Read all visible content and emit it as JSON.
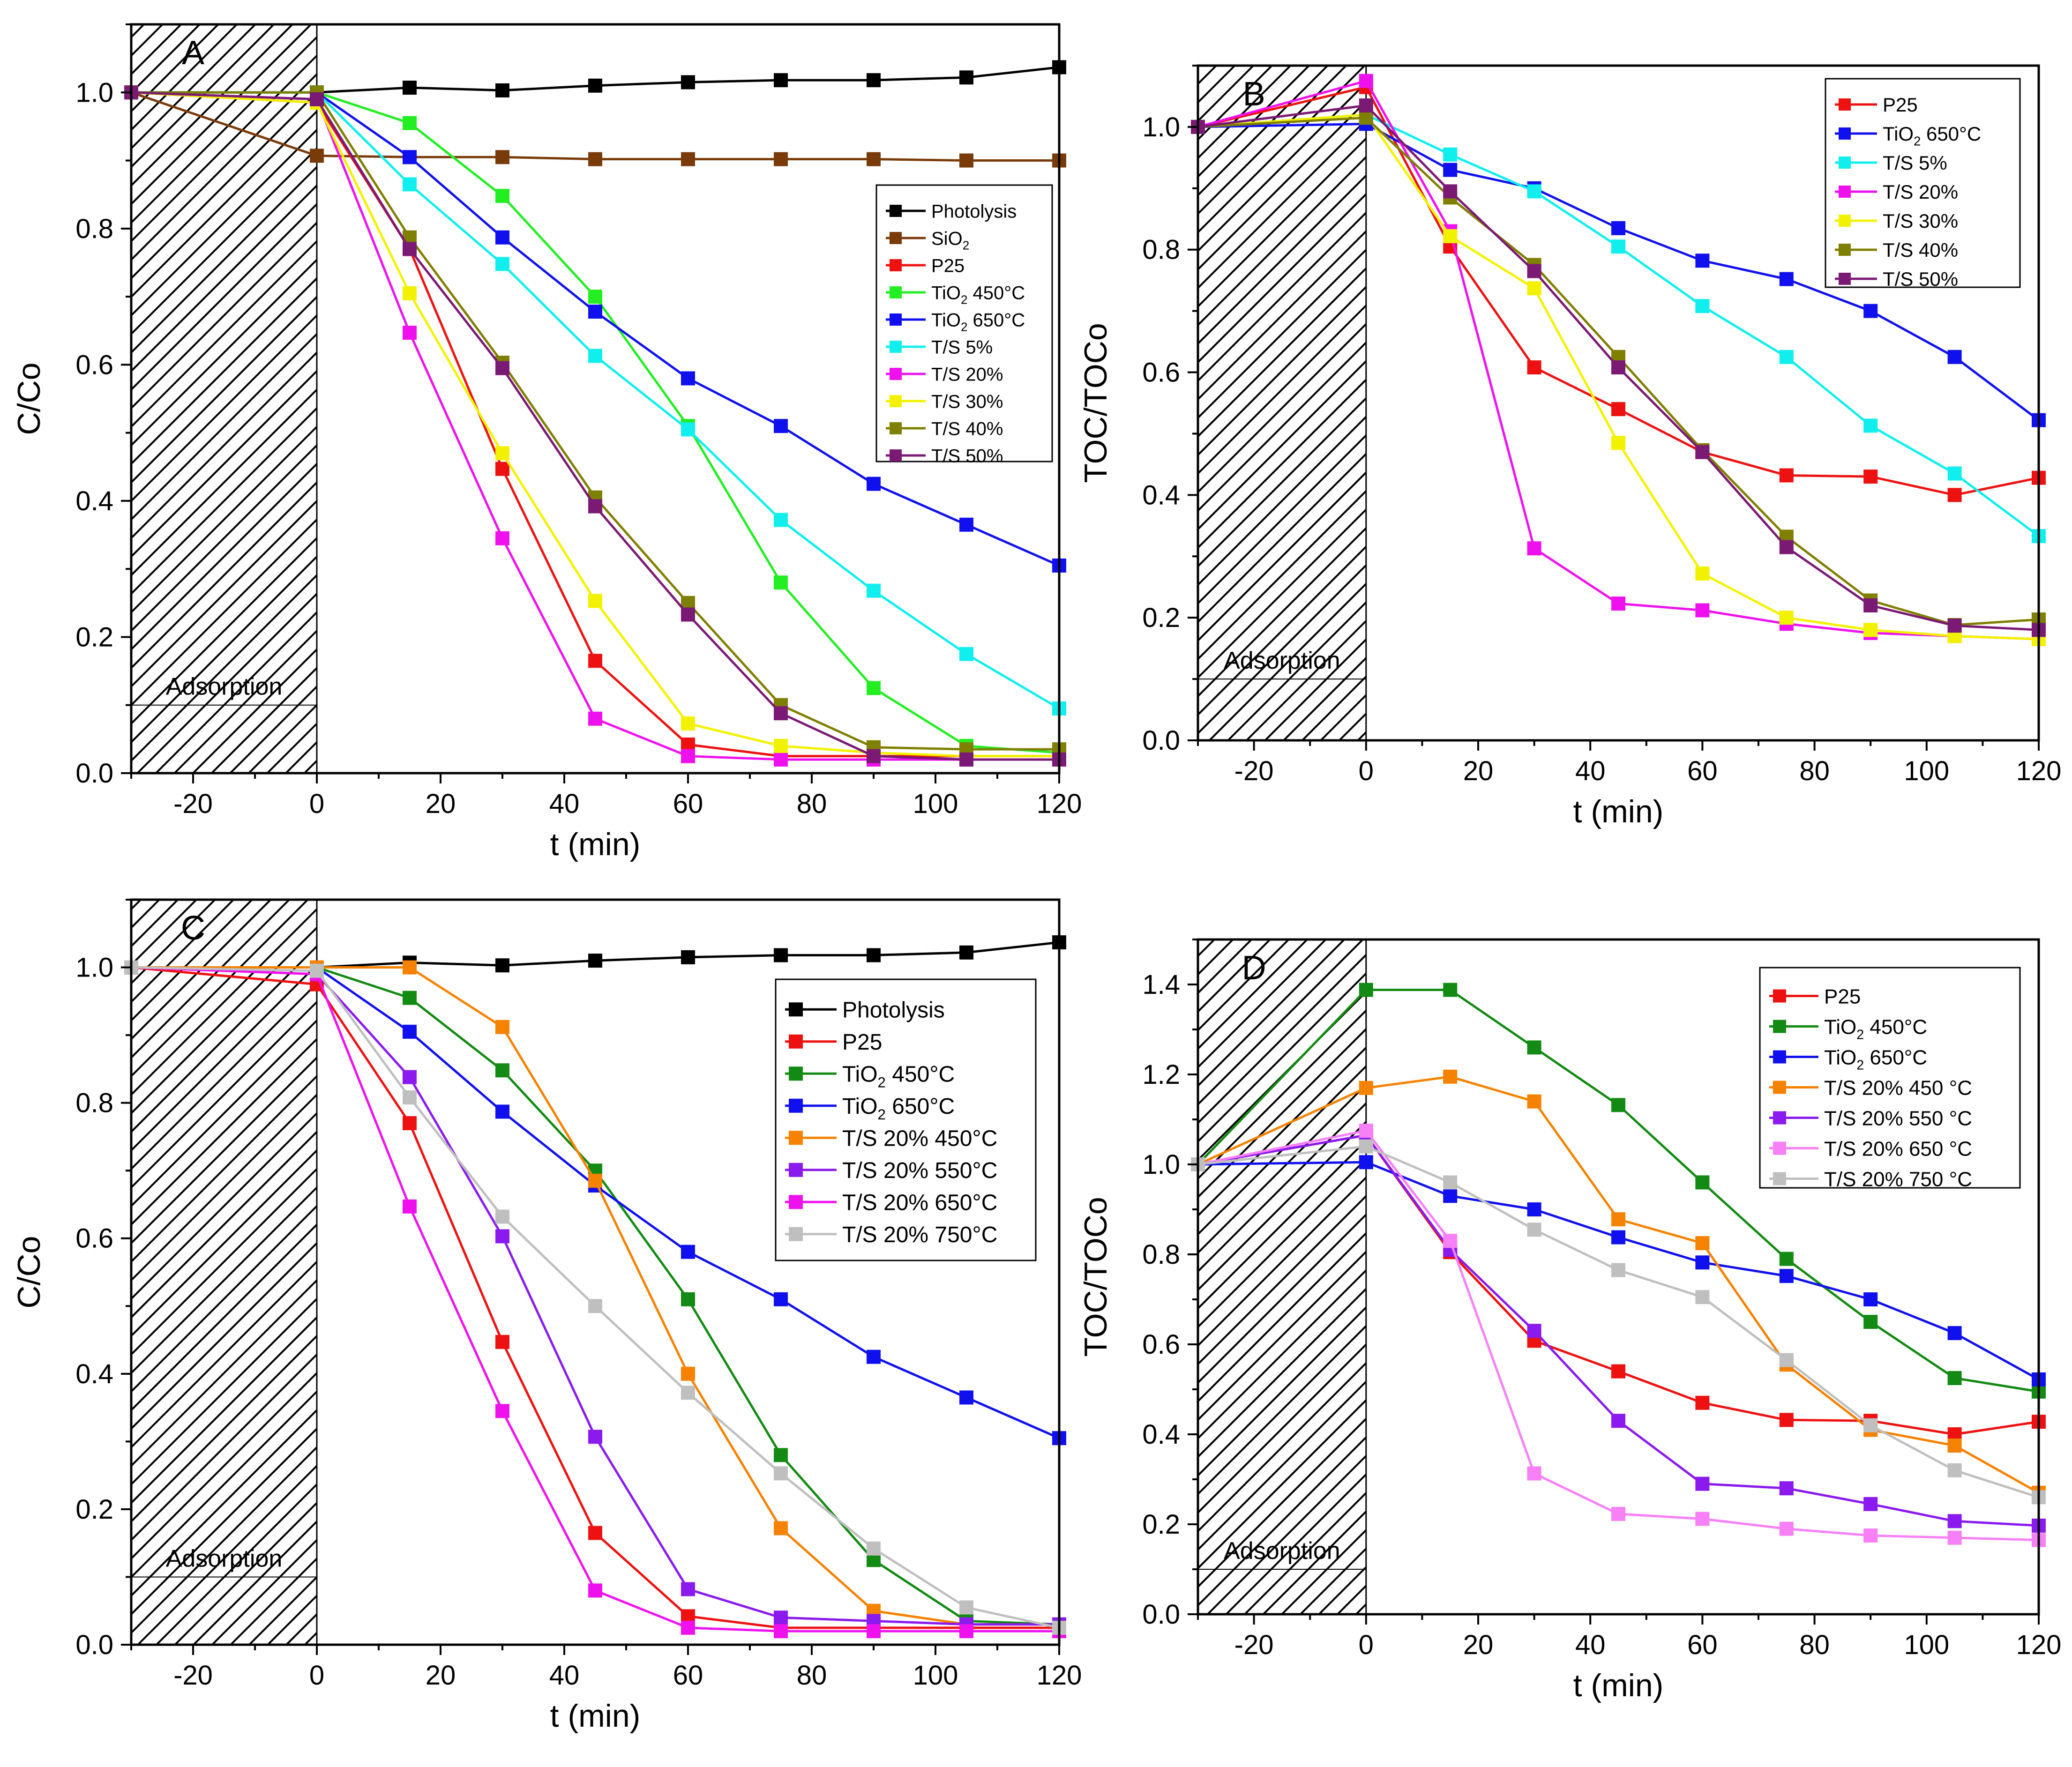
{
  "colors": {
    "Photolysis": "#000000",
    "SiO2": "#7a3b0b",
    "P25": "#ee1111",
    "TiO2 450°C": "#22ee22",
    "TiO2 450°C D": "#138a13",
    "TiO2 650°C": "#1010ee",
    "T/S 5%": "#11eeee",
    "T/S 20%": "#ee11ee",
    "T/S 30%": "#f2f200",
    "T/S 40%": "#7f7f00",
    "T/S 50%": "#7b1a74",
    "T/S 20% 450°C": "#f58200",
    "T/S 20% 550°C": "#8a1aee",
    "T/S 20% 650°C": "#f780f7",
    "T/S 20% 750°C": "#bfbfbf"
  },
  "chart_data": [
    {
      "panel": "A",
      "type": "line",
      "title": "A",
      "xlabel": "t (min)",
      "ylabel": "C/Co",
      "xlim": [
        -30,
        120
      ],
      "ylim": [
        0,
        1.1
      ],
      "xticks": [
        -20,
        0,
        20,
        40,
        60,
        80,
        100,
        120
      ],
      "yticks": [
        0.0,
        0.2,
        0.4,
        0.6,
        0.8,
        1.0
      ],
      "ytick_labels": [
        "0.0",
        "0.2",
        "0.4",
        "0.6",
        "0.8",
        "1.0"
      ],
      "annotation": "Adsorption",
      "adsorption_region": [
        -30,
        0
      ],
      "legend_position": "right-middle",
      "x": [
        -30,
        0,
        15,
        30,
        45,
        60,
        75,
        90,
        105,
        120
      ],
      "series": [
        {
          "name": "Photolysis",
          "sub": "",
          "colorKey": "Photolysis",
          "values": [
            1.0,
            1.0,
            1.007,
            1.003,
            1.01,
            1.015,
            1.018,
            1.018,
            1.022,
            1.037
          ]
        },
        {
          "name": "SiO",
          "sub": "2",
          "colorKey": "SiO2",
          "values": [
            1.0,
            0.907,
            0.905,
            0.905,
            0.902,
            0.902,
            0.902,
            0.902,
            0.9,
            0.9
          ]
        },
        {
          "name": "P25",
          "sub": "",
          "colorKey": "P25",
          "values": [
            1.0,
            0.985,
            0.77,
            0.447,
            0.165,
            0.042,
            0.025,
            0.025,
            0.025,
            0.025
          ]
        },
        {
          "name": "TiO",
          "sub": "2",
          "suffix": " 450°C",
          "colorKey": "TiO2 450°C",
          "values": [
            1.0,
            1.0,
            0.955,
            0.848,
            0.7,
            0.51,
            0.28,
            0.125,
            0.04,
            0.03
          ]
        },
        {
          "name": "TiO",
          "sub": "2",
          "suffix": " 650°C",
          "colorKey": "TiO2 650°C",
          "values": [
            1.0,
            1.0,
            0.905,
            0.787,
            0.678,
            0.58,
            0.51,
            0.425,
            0.365,
            0.305
          ]
        },
        {
          "name": "T/S 5%",
          "sub": "",
          "colorKey": "T/S 5%",
          "values": [
            1.0,
            1.0,
            0.865,
            0.748,
            0.613,
            0.505,
            0.372,
            0.268,
            0.175,
            0.095
          ]
        },
        {
          "name": "T/S 20%",
          "sub": "",
          "colorKey": "T/S 20%",
          "values": [
            1.0,
            0.99,
            0.647,
            0.345,
            0.08,
            0.025,
            0.02,
            0.02,
            0.02,
            0.02
          ]
        },
        {
          "name": "T/S 30%",
          "sub": "",
          "colorKey": "T/S 30%",
          "values": [
            1.0,
            0.985,
            0.705,
            0.47,
            0.253,
            0.073,
            0.04,
            0.03,
            0.025,
            0.025
          ]
        },
        {
          "name": "T/S 40%",
          "sub": "",
          "colorKey": "T/S 40%",
          "values": [
            1.0,
            1.0,
            0.787,
            0.603,
            0.405,
            0.25,
            0.1,
            0.038,
            0.035,
            0.035
          ]
        },
        {
          "name": "T/S 50%",
          "sub": "",
          "colorKey": "T/S 50%",
          "values": [
            1.0,
            0.99,
            0.77,
            0.595,
            0.392,
            0.233,
            0.088,
            0.025,
            0.02,
            0.02
          ]
        }
      ]
    },
    {
      "panel": "B",
      "type": "line",
      "title": "B",
      "xlabel": "t (min)",
      "ylabel": "TOC/TOCo",
      "xlim": [
        -30,
        120
      ],
      "ylim": [
        0,
        1.1
      ],
      "xticks": [
        -20,
        0,
        20,
        40,
        60,
        80,
        100,
        120
      ],
      "yticks": [
        0.0,
        0.2,
        0.4,
        0.6,
        0.8,
        1.0
      ],
      "ytick_labels": [
        "0.0",
        "0.2",
        "0.4",
        "0.6",
        "0.8",
        "1.0"
      ],
      "annotation": "Adsorption",
      "adsorption_region": [
        -30,
        0
      ],
      "legend_position": "top-right",
      "x": [
        -30,
        0,
        15,
        30,
        45,
        60,
        75,
        90,
        105,
        120
      ],
      "series": [
        {
          "name": "P25",
          "sub": "",
          "colorKey": "P25",
          "values": [
            1.0,
            1.065,
            0.805,
            0.608,
            0.54,
            0.47,
            0.432,
            0.43,
            0.4,
            0.428
          ]
        },
        {
          "name": "TiO",
          "sub": "2",
          "suffix": " 650°C",
          "colorKey": "TiO2 650°C",
          "values": [
            1.0,
            1.005,
            0.93,
            0.9,
            0.835,
            0.782,
            0.752,
            0.7,
            0.625,
            0.522
          ]
        },
        {
          "name": "T/S 5%",
          "sub": "",
          "colorKey": "T/S 5%",
          "values": [
            1.0,
            1.02,
            0.955,
            0.895,
            0.805,
            0.708,
            0.625,
            0.513,
            0.435,
            0.333
          ]
        },
        {
          "name": "T/S 20%",
          "sub": "",
          "colorKey": "T/S 20%",
          "values": [
            1.0,
            1.075,
            0.83,
            0.313,
            0.223,
            0.212,
            0.19,
            0.175,
            0.17,
            0.165
          ]
        },
        {
          "name": "T/S 30%",
          "sub": "",
          "colorKey": "T/S 30%",
          "values": [
            1.0,
            1.02,
            0.822,
            0.737,
            0.485,
            0.272,
            0.2,
            0.18,
            0.17,
            0.165
          ]
        },
        {
          "name": "T/S 40%",
          "sub": "",
          "colorKey": "T/S 40%",
          "values": [
            1.0,
            1.015,
            0.885,
            0.775,
            0.625,
            0.473,
            0.332,
            0.228,
            0.188,
            0.197
          ]
        },
        {
          "name": "T/S 50%",
          "sub": "",
          "colorKey": "T/S 50%",
          "values": [
            1.0,
            1.035,
            0.895,
            0.765,
            0.608,
            0.47,
            0.315,
            0.22,
            0.187,
            0.18
          ]
        }
      ]
    },
    {
      "panel": "C",
      "type": "line",
      "title": "C",
      "xlabel": "t (min)",
      "ylabel": "C/Co",
      "xlim": [
        -30,
        120
      ],
      "ylim": [
        0,
        1.1
      ],
      "xticks": [
        -20,
        0,
        20,
        40,
        60,
        80,
        100,
        120
      ],
      "yticks": [
        0.0,
        0.2,
        0.4,
        0.6,
        0.8,
        1.0
      ],
      "ytick_labels": [
        "0.0",
        "0.2",
        "0.4",
        "0.6",
        "0.8",
        "1.0"
      ],
      "annotation": "Adsorption",
      "adsorption_region": [
        -30,
        0
      ],
      "legend_position": "right-middle",
      "x": [
        -30,
        0,
        15,
        30,
        45,
        60,
        75,
        90,
        105,
        120
      ],
      "series": [
        {
          "name": "Photolysis",
          "sub": "",
          "colorKey": "Photolysis",
          "values": [
            1.0,
            1.0,
            1.007,
            1.003,
            1.01,
            1.015,
            1.018,
            1.018,
            1.022,
            1.037
          ]
        },
        {
          "name": "P25",
          "sub": "",
          "colorKey": "P25",
          "values": [
            1.0,
            0.975,
            0.77,
            0.447,
            0.165,
            0.042,
            0.025,
            0.025,
            0.025,
            0.025
          ]
        },
        {
          "name": "TiO",
          "sub": "2",
          "suffix": " 450°C",
          "colorKey": "TiO2 450°C D",
          "values": [
            1.0,
            1.0,
            0.955,
            0.848,
            0.7,
            0.51,
            0.28,
            0.125,
            0.035,
            0.03
          ]
        },
        {
          "name": "TiO",
          "sub": "2",
          "suffix": " 650°C",
          "colorKey": "TiO2 650°C",
          "values": [
            1.0,
            1.0,
            0.905,
            0.787,
            0.678,
            0.58,
            0.51,
            0.425,
            0.365,
            0.305
          ]
        },
        {
          "name": "T/S 20% 450°C",
          "sub": "",
          "colorKey": "T/S 20% 450°C",
          "values": [
            1.0,
            1.0,
            1.0,
            0.912,
            0.685,
            0.4,
            0.172,
            0.05,
            0.03,
            0.03
          ]
        },
        {
          "name": "T/S 20% 550°C",
          "sub": "",
          "colorKey": "T/S 20% 550°C",
          "values": [
            1.0,
            0.99,
            0.838,
            0.603,
            0.307,
            0.082,
            0.04,
            0.035,
            0.03,
            0.03
          ]
        },
        {
          "name": "T/S 20% 650°C",
          "sub": "",
          "colorKey": "T/S 20%",
          "values": [
            1.0,
            0.99,
            0.647,
            0.345,
            0.08,
            0.025,
            0.02,
            0.02,
            0.02,
            0.02
          ]
        },
        {
          "name": "T/S 20% 750°C",
          "sub": "",
          "colorKey": "T/S 20% 750°C",
          "values": [
            1.0,
            0.995,
            0.808,
            0.632,
            0.5,
            0.372,
            0.253,
            0.142,
            0.055,
            0.025
          ]
        }
      ]
    },
    {
      "panel": "D",
      "type": "line",
      "title": "D",
      "xlabel": "t (min)",
      "ylabel": "TOC/TOCo",
      "xlim": [
        -30,
        120
      ],
      "ylim": [
        0,
        1.5
      ],
      "xticks": [
        -20,
        0,
        20,
        40,
        60,
        80,
        100,
        120
      ],
      "yticks": [
        0.0,
        0.2,
        0.4,
        0.6,
        0.8,
        1.0,
        1.2,
        1.4
      ],
      "ytick_labels": [
        "0.0",
        "0.2",
        "0.4",
        "0.6",
        "0.8",
        "1.0",
        "1.2",
        "1.4"
      ],
      "annotation": "Adsorption",
      "adsorption_region": [
        -30,
        0
      ],
      "legend_position": "top-right",
      "x": [
        -30,
        0,
        15,
        30,
        45,
        60,
        75,
        90,
        105,
        120
      ],
      "series": [
        {
          "name": "P25",
          "sub": "",
          "colorKey": "P25",
          "values": [
            1.0,
            1.065,
            0.805,
            0.608,
            0.54,
            0.47,
            0.432,
            0.43,
            0.4,
            0.428
          ]
        },
        {
          "name": "TiO",
          "sub": "2",
          "suffix": " 450°C",
          "colorKey": "TiO2 450°C D",
          "values": [
            1.0,
            1.388,
            1.388,
            1.26,
            1.132,
            0.96,
            0.79,
            0.65,
            0.525,
            0.495
          ]
        },
        {
          "name": "TiO",
          "sub": "2",
          "suffix": " 650°C",
          "colorKey": "TiO2 650°C",
          "values": [
            1.0,
            1.005,
            0.93,
            0.9,
            0.838,
            0.782,
            0.752,
            0.7,
            0.625,
            0.522
          ]
        },
        {
          "name": "T/S 20% 450 °C",
          "sub": "",
          "colorKey": "T/S 20% 450°C",
          "values": [
            1.0,
            1.17,
            1.195,
            1.14,
            0.878,
            0.825,
            0.555,
            0.41,
            0.375,
            0.27
          ]
        },
        {
          "name": "T/S 20% 550 °C",
          "sub": "",
          "colorKey": "T/S 20% 550°C",
          "values": [
            1.0,
            1.065,
            0.81,
            0.63,
            0.43,
            0.29,
            0.28,
            0.245,
            0.207,
            0.197
          ]
        },
        {
          "name": "T/S 20% 650 °C",
          "sub": "",
          "colorKey": "T/S 20% 650°C",
          "values": [
            1.0,
            1.075,
            0.83,
            0.313,
            0.223,
            0.212,
            0.19,
            0.175,
            0.17,
            0.165
          ]
        },
        {
          "name": "T/S 20% 750 °C",
          "sub": "",
          "colorKey": "T/S 20% 750°C",
          "values": [
            1.0,
            1.04,
            0.96,
            0.855,
            0.765,
            0.705,
            0.565,
            0.42,
            0.32,
            0.26
          ]
        }
      ]
    }
  ]
}
